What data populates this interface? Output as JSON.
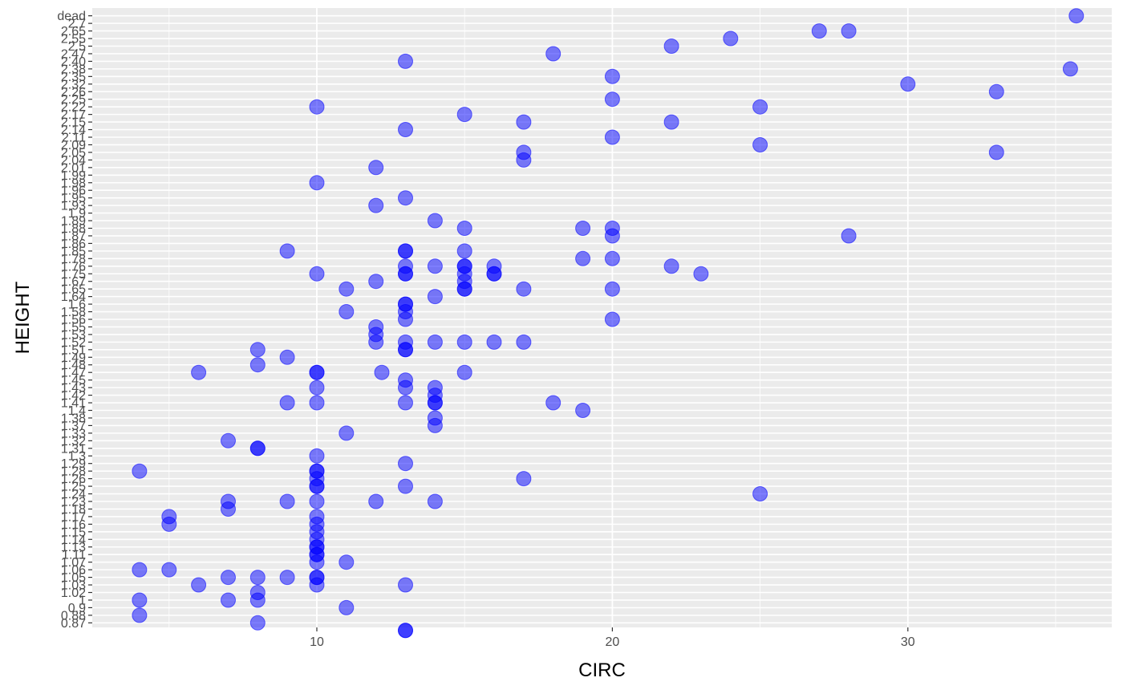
{
  "chart_data": {
    "type": "scatter",
    "xlabel": "CIRC",
    "ylabel": "HEIGHT",
    "x_ticks": [
      10,
      20,
      30
    ],
    "xlim": [
      2.4,
      36.9
    ],
    "y_categories": [
      "0.87",
      "0.88",
      "0.9",
      "1",
      "1.02",
      "1.03",
      "1.05",
      "1.06",
      "1.07",
      "1.11",
      "1.13",
      "1.14",
      "1.15",
      "1.16",
      "1.17",
      "1.18",
      "1.23",
      "1.24",
      "1.25",
      "1.26",
      "1.28",
      "1.29",
      "1.3",
      "1.31",
      "1.32",
      "1.33",
      "1.37",
      "1.38",
      "1.4",
      "1.41",
      "1.42",
      "1.43",
      "1.45",
      "1.47",
      "1.48",
      "1.49",
      "1.51",
      "1.52",
      "1.53",
      "1.55",
      "1.56",
      "1.58",
      "1.6",
      "1.64",
      "1.65",
      "1.67",
      "1.75",
      "1.76",
      "1.78",
      "1.85",
      "1.86",
      "1.87",
      "1.88",
      "1.89",
      "1.9",
      "1.93",
      "1.95",
      "1.96",
      "1.98",
      "1.99",
      "2.01",
      "2.04",
      "2.05",
      "2.09",
      "2.11",
      "2.14",
      "2.15",
      "2.17",
      "2.22",
      "2.25",
      "2.26",
      "2.32",
      "2.35",
      "2.38",
      "2.40",
      "2.47",
      "2.5",
      "2.55",
      "2.65",
      "2.7",
      "dead"
    ],
    "series": [
      {
        "color": "#0000ff",
        "opacity": 0.5,
        "points": [
          [
            8,
            "0.87"
          ],
          [
            4,
            "0.88"
          ],
          [
            11,
            "0.9"
          ],
          [
            4,
            "1"
          ],
          [
            7,
            "1"
          ],
          [
            8,
            "1"
          ],
          [
            8,
            "1.02"
          ],
          [
            6,
            "1.03"
          ],
          [
            10,
            "1.03"
          ],
          [
            13,
            "1.03"
          ],
          [
            7,
            "1.05"
          ],
          [
            8,
            "1.05"
          ],
          [
            9,
            "1.05"
          ],
          [
            10,
            "1.05"
          ],
          [
            10,
            "1.05"
          ],
          [
            4,
            "1.06"
          ],
          [
            5,
            "1.06"
          ],
          [
            10,
            "1.07"
          ],
          [
            11,
            "1.07"
          ],
          [
            10,
            "1.11"
          ],
          [
            10,
            "1.11"
          ],
          [
            10,
            "1.13"
          ],
          [
            10,
            "1.13"
          ],
          [
            10,
            "1.14"
          ],
          [
            10,
            "1.15"
          ],
          [
            5,
            "1.16"
          ],
          [
            10,
            "1.16"
          ],
          [
            5,
            "1.17"
          ],
          [
            10,
            "1.17"
          ],
          [
            7,
            "1.18"
          ],
          [
            7,
            "1.23"
          ],
          [
            9,
            "1.23"
          ],
          [
            10,
            "1.23"
          ],
          [
            12,
            "1.23"
          ],
          [
            14,
            "1.23"
          ],
          [
            25,
            "1.24"
          ],
          [
            10,
            "1.25"
          ],
          [
            10,
            "1.25"
          ],
          [
            13,
            "1.25"
          ],
          [
            10,
            "1.26"
          ],
          [
            17,
            "1.26"
          ],
          [
            10,
            "1.28"
          ],
          [
            10,
            "1.28"
          ],
          [
            4,
            "1.28"
          ],
          [
            13,
            "1.29"
          ],
          [
            10,
            "1.3"
          ],
          [
            8,
            "1.31"
          ],
          [
            8,
            "1.31"
          ],
          [
            7,
            "1.32"
          ],
          [
            11,
            "1.33"
          ],
          [
            14,
            "1.37"
          ],
          [
            14,
            "1.38"
          ],
          [
            19,
            "1.4"
          ],
          [
            9,
            "1.41"
          ],
          [
            10,
            "1.41"
          ],
          [
            13,
            "1.41"
          ],
          [
            14,
            "1.41"
          ],
          [
            14,
            "1.41"
          ],
          [
            18,
            "1.41"
          ],
          [
            14,
            "1.42"
          ],
          [
            10,
            "1.43"
          ],
          [
            13,
            "1.43"
          ],
          [
            14,
            "1.43"
          ],
          [
            13,
            "1.45"
          ],
          [
            6,
            "1.47"
          ],
          [
            10,
            "1.47"
          ],
          [
            10,
            "1.47"
          ],
          [
            12.2,
            "1.47"
          ],
          [
            15,
            "1.47"
          ],
          [
            8,
            "1.48"
          ],
          [
            9,
            "1.49"
          ],
          [
            8,
            "1.51"
          ],
          [
            13,
            "1.51"
          ],
          [
            13,
            "1.51"
          ],
          [
            12,
            "1.52"
          ],
          [
            13,
            "1.52"
          ],
          [
            14,
            "1.52"
          ],
          [
            15,
            "1.52"
          ],
          [
            16,
            "1.52"
          ],
          [
            17,
            "1.52"
          ],
          [
            12,
            "1.53"
          ],
          [
            12,
            "1.55"
          ],
          [
            13,
            "1.56"
          ],
          [
            20,
            "1.56"
          ],
          [
            11,
            "1.58"
          ],
          [
            13,
            "1.58"
          ],
          [
            13,
            "1.6"
          ],
          [
            13,
            "1.6"
          ],
          [
            14,
            "1.64"
          ],
          [
            11,
            "1.65"
          ],
          [
            15,
            "1.65"
          ],
          [
            15,
            "1.65"
          ],
          [
            17,
            "1.65"
          ],
          [
            20,
            "1.65"
          ],
          [
            12,
            "1.67"
          ],
          [
            15,
            "1.67"
          ],
          [
            10,
            "1.75"
          ],
          [
            13,
            "1.75"
          ],
          [
            13,
            "1.75"
          ],
          [
            15,
            "1.75"
          ],
          [
            16,
            "1.75"
          ],
          [
            16,
            "1.75"
          ],
          [
            23,
            "1.75"
          ],
          [
            13,
            "1.76"
          ],
          [
            14,
            "1.76"
          ],
          [
            15,
            "1.76"
          ],
          [
            15,
            "1.76"
          ],
          [
            16,
            "1.76"
          ],
          [
            22,
            "1.76"
          ],
          [
            19,
            "1.78"
          ],
          [
            20,
            "1.78"
          ],
          [
            9,
            "1.85"
          ],
          [
            13,
            "1.85"
          ],
          [
            13,
            "1.85"
          ],
          [
            15,
            "1.85"
          ],
          [
            20,
            "1.87"
          ],
          [
            28,
            "1.87"
          ],
          [
            15,
            "1.88"
          ],
          [
            19,
            "1.88"
          ],
          [
            20,
            "1.88"
          ],
          [
            14,
            "1.89"
          ],
          [
            13,
            "1.90"
          ],
          [
            13,
            "1.90"
          ],
          [
            12,
            "1.93"
          ],
          [
            13,
            "1.95"
          ],
          [
            10,
            "1.98"
          ],
          [
            12,
            "2.01"
          ],
          [
            17,
            "2.04"
          ],
          [
            17,
            "2.05"
          ],
          [
            33,
            "2.05"
          ],
          [
            25,
            "2.09"
          ],
          [
            20,
            "2.11"
          ],
          [
            13,
            "2.14"
          ],
          [
            17,
            "2.15"
          ],
          [
            22,
            "2.15"
          ],
          [
            15,
            "2.17"
          ],
          [
            10,
            "2.22"
          ],
          [
            25,
            "2.22"
          ],
          [
            20,
            "2.25"
          ],
          [
            33,
            "2.26"
          ],
          [
            30,
            "2.32"
          ],
          [
            20,
            "2.35"
          ],
          [
            35.5,
            "2.38"
          ],
          [
            13,
            "2.40"
          ],
          [
            18,
            "2.47"
          ],
          [
            22,
            "2.5"
          ],
          [
            24,
            "2.55"
          ],
          [
            27,
            "2.65"
          ],
          [
            28,
            "2.65"
          ],
          [
            35.7,
            "dead"
          ]
        ]
      }
    ]
  }
}
